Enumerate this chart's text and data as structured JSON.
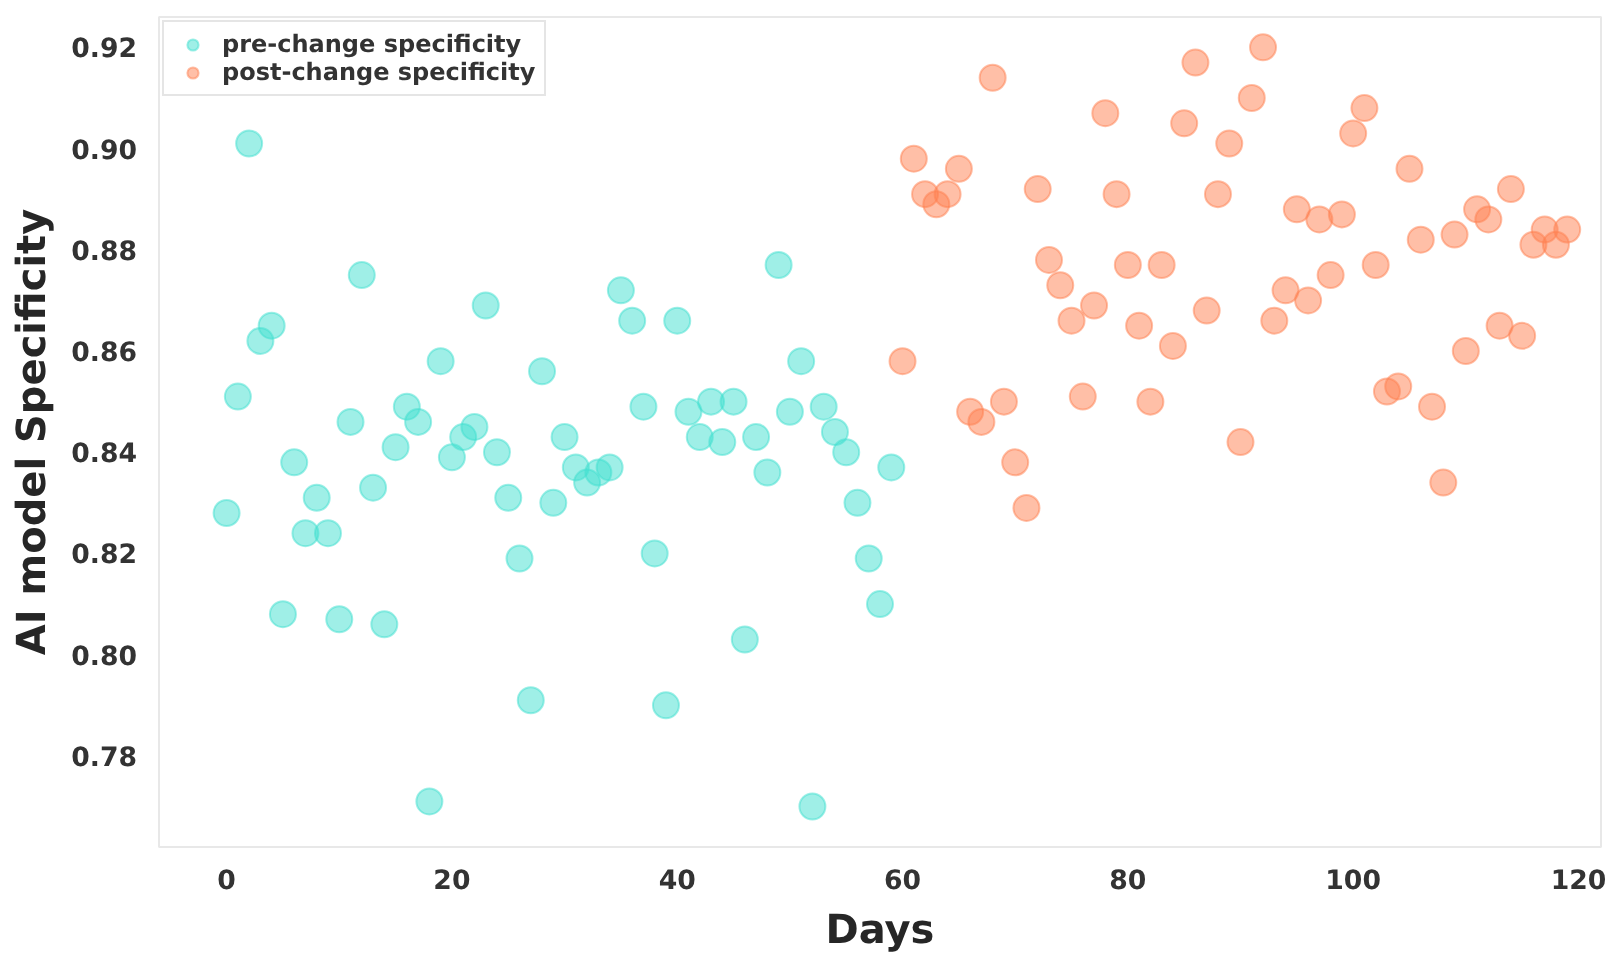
{
  "chart_data": {
    "type": "scatter",
    "xlabel": "Days",
    "ylabel": "AI model Specificity",
    "xlim": [
      -6,
      122
    ],
    "ylim": [
      0.762,
      0.926
    ],
    "xticks": [
      0,
      20,
      40,
      60,
      80,
      100,
      120
    ],
    "yticks": [
      0.78,
      {
        "value": 0.8,
        "label": "0.80"
      },
      0.82,
      0.84,
      0.86,
      0.88,
      {
        "value": 0.9,
        "label": "0.90"
      },
      0.92
    ],
    "grid": false,
    "legend": "top left",
    "marker": "circle",
    "series": [
      {
        "name": "pre-change specificity",
        "color": "#40e0d0",
        "x": [
          0,
          1,
          2,
          3,
          4,
          5,
          6,
          7,
          8,
          9,
          10,
          11,
          12,
          13,
          14,
          15,
          16,
          17,
          18,
          19,
          20,
          21,
          22,
          23,
          24,
          25,
          26,
          27,
          28,
          29,
          30,
          31,
          32,
          33,
          34,
          35,
          36,
          37,
          38,
          39,
          40,
          41,
          42,
          43,
          44,
          45,
          46,
          47,
          48,
          49,
          50,
          51,
          52,
          53,
          54,
          55,
          56,
          57,
          58,
          59
        ],
        "values": [
          0.828,
          0.851,
          0.901,
          0.862,
          0.865,
          0.808,
          0.838,
          0.824,
          0.831,
          0.824,
          0.807,
          0.846,
          0.875,
          0.833,
          0.806,
          0.841,
          0.849,
          0.846,
          0.771,
          0.858,
          0.839,
          0.843,
          0.845,
          0.869,
          0.84,
          0.831,
          0.819,
          0.791,
          0.856,
          0.83,
          0.843,
          0.837,
          0.834,
          0.836,
          0.837,
          0.872,
          0.866,
          0.849,
          0.82,
          0.79,
          0.866,
          0.848,
          0.843,
          0.85,
          0.842,
          0.85,
          0.803,
          0.843,
          0.836,
          0.877,
          0.848,
          0.858,
          0.77,
          0.849,
          0.844,
          0.84,
          0.83,
          0.819,
          0.81,
          0.837
        ]
      },
      {
        "name": "post-change specificity",
        "color": "#ff7f50",
        "x": [
          60,
          61,
          62,
          63,
          64,
          65,
          66,
          67,
          68,
          69,
          70,
          71,
          72,
          73,
          74,
          75,
          76,
          77,
          78,
          79,
          80,
          81,
          82,
          83,
          84,
          85,
          86,
          87,
          88,
          89,
          90,
          91,
          92,
          93,
          94,
          95,
          96,
          97,
          98,
          99,
          100,
          101,
          102,
          103,
          104,
          105,
          106,
          107,
          108,
          109,
          110,
          111,
          112,
          113,
          114,
          115,
          116,
          117,
          118,
          119
        ],
        "values": [
          0.858,
          0.898,
          0.891,
          0.889,
          0.891,
          0.896,
          0.848,
          0.846,
          0.914,
          0.85,
          0.838,
          0.829,
          0.892,
          0.878,
          0.873,
          0.866,
          0.851,
          0.869,
          0.907,
          0.891,
          0.877,
          0.865,
          0.85,
          0.877,
          0.861,
          0.905,
          0.917,
          0.868,
          0.891,
          0.901,
          0.842,
          0.91,
          0.92,
          0.866,
          0.872,
          0.888,
          0.87,
          0.886,
          0.875,
          0.887,
          0.903,
          0.908,
          0.877,
          0.852,
          0.853,
          0.896,
          0.882,
          0.849,
          0.834,
          0.883,
          0.86,
          0.888,
          0.886,
          0.865,
          0.892,
          0.863,
          0.881,
          0.884,
          0.881,
          0.884
        ]
      }
    ]
  }
}
